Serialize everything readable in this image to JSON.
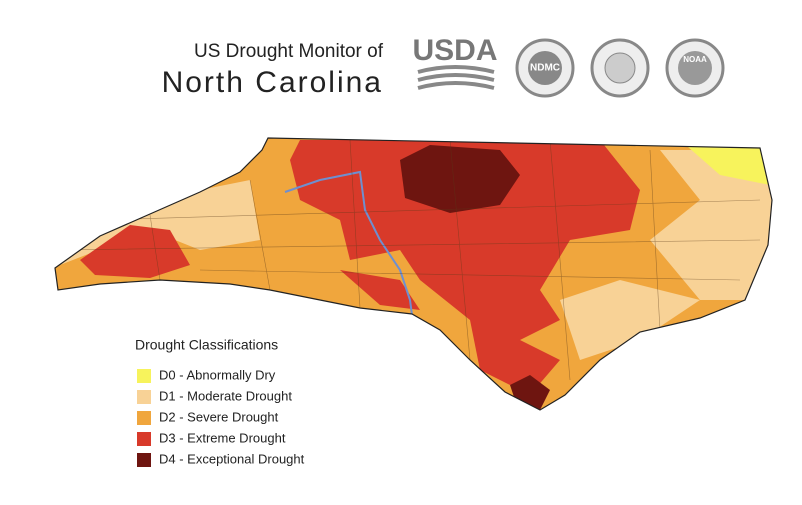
{
  "header": {
    "title_line1": "US Drought Monitor of",
    "title_line2": "North Carolina"
  },
  "logos": [
    "USDA",
    "NDMC",
    "NOAA"
  ],
  "legend": {
    "title": "Drought Classifications",
    "items": [
      {
        "label": "D0 - Abnormally Dry",
        "color": "#f7f35c"
      },
      {
        "label": "D1 - Moderate Drought",
        "color": "#f8d296"
      },
      {
        "label": "D2 - Severe Drought",
        "color": "#f0a63d"
      },
      {
        "label": "D3 - Extreme Drought",
        "color": "#d83a2a"
      },
      {
        "label": "D4 - Exceptional Drought",
        "color": "#6e1510"
      }
    ]
  }
}
